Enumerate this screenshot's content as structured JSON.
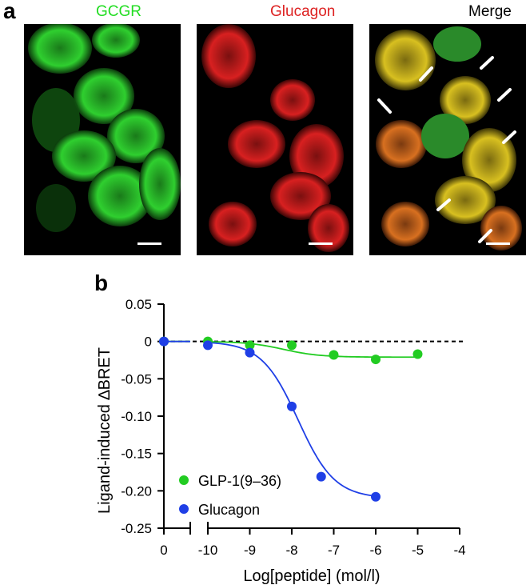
{
  "panel_a": {
    "letter": "a",
    "panels": [
      {
        "title": "GCGR",
        "title_color": "#22dd22"
      },
      {
        "title": "Glucagon",
        "title_color": "#dd2222"
      },
      {
        "title": "Merge",
        "title_color": "#000000"
      }
    ]
  },
  "panel_b": {
    "letter": "b"
  },
  "chart_data": {
    "type": "scatter",
    "ylabel": "Ligand-induced ∆BRET",
    "xlabel": "Log[peptide] (mol/l)",
    "x_ticks": [
      "0",
      "-10",
      "-9",
      "-8",
      "-7",
      "-6",
      "-5",
      "-4"
    ],
    "y_ticks": [
      "0.05",
      "0",
      "-0.05",
      "-0.10",
      "-0.15",
      "-0.20",
      "-0.25"
    ],
    "ylim": [
      -0.25,
      0.05
    ],
    "xlim": [
      -10,
      -4
    ],
    "axis_break": "between 0 and -10",
    "legend_position": "bottom-left",
    "series": [
      {
        "name": "GLP-1(9–36)",
        "color": "#22cc22",
        "x": [
          0,
          -10,
          -9,
          -8,
          -7,
          -6,
          -5
        ],
        "y": [
          0.0,
          0.0,
          -0.005,
          -0.005,
          -0.018,
          -0.024,
          -0.017
        ]
      },
      {
        "name": "Glucagon",
        "color": "#1f3fe6",
        "x": [
          0,
          -10,
          -9,
          -8,
          -7.3,
          -6
        ],
        "y": [
          0.0,
          -0.005,
          -0.015,
          -0.087,
          -0.181,
          -0.208
        ]
      }
    ],
    "fits": {
      "GLP-1(9–36)": {
        "top": 0.0,
        "bottom": -0.021,
        "log_ec50": -8.2,
        "hill": 1.0
      },
      "Glucagon": {
        "top": 0.0,
        "bottom": -0.21,
        "log_ec50": -7.85,
        "hill": 1.0
      }
    },
    "reference_line": {
      "y": 0,
      "style": "dashed"
    }
  }
}
